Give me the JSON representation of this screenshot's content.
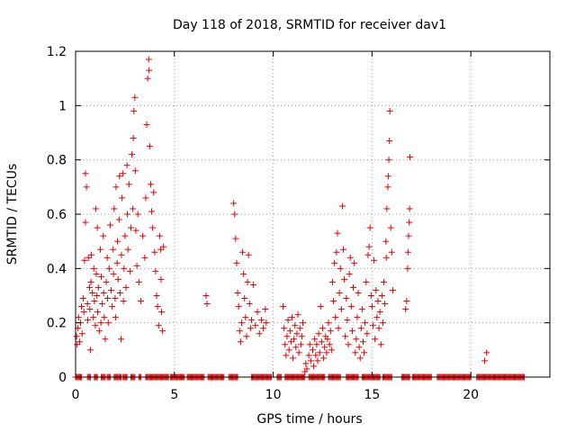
{
  "chart_data": {
    "type": "scatter",
    "title": "Day 118 of 2018, SRMTID for receiver dav1",
    "xlabel": "GPS time / hours",
    "ylabel": "SRMTID / TECUs",
    "xlim": [
      0,
      24
    ],
    "ylim": [
      0,
      1.2
    ],
    "xticks": [
      0,
      5,
      10,
      15,
      20
    ],
    "xtick_labels": [
      "0",
      "5",
      "10",
      "15",
      "20"
    ],
    "yticks": [
      0,
      0.2,
      0.4,
      0.6,
      0.8,
      1.0,
      1.2
    ],
    "ytick_labels": [
      "0",
      "0.2",
      "0.4",
      "0.6",
      "0.8",
      "1",
      "1.2"
    ],
    "grid": true,
    "marker": "+",
    "color": "#e00000",
    "series": [
      {
        "name": "SRMTID",
        "points": [
          [
            0.05,
            0.15
          ],
          [
            0.08,
            0.12
          ],
          [
            0.12,
            0.18
          ],
          [
            0.15,
            0.22
          ],
          [
            0.2,
            0.13
          ],
          [
            0.25,
            0.2
          ],
          [
            0.3,
            0.26
          ],
          [
            0.33,
            0.16
          ],
          [
            0.38,
            0.29
          ],
          [
            0.42,
            0.24
          ],
          [
            0.45,
            0.43
          ],
          [
            0.5,
            0.57
          ],
          [
            0.5,
            0.75
          ],
          [
            0.55,
            0.7
          ],
          [
            0.6,
            0.27
          ],
          [
            0.62,
            0.21
          ],
          [
            0.65,
            0.44
          ],
          [
            0.7,
            0.33
          ],
          [
            0.72,
            0.25
          ],
          [
            0.75,
            0.1
          ],
          [
            0.78,
            0.35
          ],
          [
            0.8,
            0.45
          ],
          [
            0.85,
            0.31
          ],
          [
            0.9,
            0.22
          ],
          [
            0.92,
            0.4
          ],
          [
            0.95,
            0.28
          ],
          [
            1.0,
            0.19
          ],
          [
            1.02,
            0.62
          ],
          [
            1.05,
            0.38
          ],
          [
            1.08,
            0.3
          ],
          [
            1.1,
            0.55
          ],
          [
            1.12,
            0.24
          ],
          [
            1.15,
            0.33
          ],
          [
            1.2,
            0.17
          ],
          [
            1.25,
            0.47
          ],
          [
            1.28,
            0.2
          ],
          [
            1.3,
            0.37
          ],
          [
            1.35,
            0.27
          ],
          [
            1.4,
            0.52
          ],
          [
            1.42,
            0.31
          ],
          [
            1.45,
            0.22
          ],
          [
            1.5,
            0.14
          ],
          [
            1.55,
            0.35
          ],
          [
            1.6,
            0.44
          ],
          [
            1.62,
            0.29
          ],
          [
            1.65,
            0.2
          ],
          [
            1.7,
            0.4
          ],
          [
            1.75,
            0.56
          ],
          [
            1.8,
            0.32
          ],
          [
            1.85,
            0.26
          ],
          [
            1.9,
            0.47
          ],
          [
            1.92,
            0.38
          ],
          [
            1.95,
            0.62
          ],
          [
            2.0,
            0.29
          ],
          [
            2.02,
            0.22
          ],
          [
            2.05,
            0.7
          ],
          [
            2.1,
            0.42
          ],
          [
            2.12,
            0.5
          ],
          [
            2.15,
            0.36
          ],
          [
            2.2,
            0.58
          ],
          [
            2.22,
            0.74
          ],
          [
            2.25,
            0.31
          ],
          [
            2.3,
            0.14
          ],
          [
            2.32,
            0.45
          ],
          [
            2.35,
            0.66
          ],
          [
            2.4,
            0.75
          ],
          [
            2.42,
            0.28
          ],
          [
            2.45,
            0.4
          ],
          [
            2.5,
            0.52
          ],
          [
            2.55,
            0.33
          ],
          [
            2.6,
            0.78
          ],
          [
            2.62,
            0.6
          ],
          [
            2.65,
            0.47
          ],
          [
            2.7,
            0.71
          ],
          [
            2.75,
            0.39
          ],
          [
            2.8,
            0.55
          ],
          [
            2.85,
            0.82
          ],
          [
            2.9,
            0.62
          ],
          [
            2.92,
            0.88
          ],
          [
            2.95,
            0.98
          ],
          [
            3.0,
            1.03
          ],
          [
            3.02,
            0.76
          ],
          [
            3.05,
            0.54
          ],
          [
            3.1,
            0.41
          ],
          [
            3.15,
            0.6
          ],
          [
            3.2,
            0.35
          ],
          [
            3.3,
            0.28
          ],
          [
            3.4,
            0.52
          ],
          [
            3.5,
            0.44
          ],
          [
            3.55,
            0.66
          ],
          [
            3.6,
            0.93
          ],
          [
            3.65,
            1.1
          ],
          [
            3.7,
            1.17
          ],
          [
            3.72,
            1.13
          ],
          [
            3.75,
            0.85
          ],
          [
            3.8,
            0.71
          ],
          [
            3.85,
            0.61
          ],
          [
            3.9,
            0.55
          ],
          [
            3.95,
            0.68
          ],
          [
            4.0,
            0.46
          ],
          [
            4.05,
            0.39
          ],
          [
            4.1,
            0.3
          ],
          [
            4.15,
            0.26
          ],
          [
            4.2,
            0.19
          ],
          [
            4.25,
            0.52
          ],
          [
            4.3,
            0.47
          ],
          [
            4.32,
            0.36
          ],
          [
            4.35,
            0.24
          ],
          [
            4.4,
            0.17
          ],
          [
            4.45,
            0.48
          ],
          [
            6.6,
            0.3
          ],
          [
            6.65,
            0.27
          ],
          [
            8.0,
            0.64
          ],
          [
            8.05,
            0.6
          ],
          [
            8.1,
            0.51
          ],
          [
            8.15,
            0.42
          ],
          [
            8.2,
            0.31
          ],
          [
            8.25,
            0.26
          ],
          [
            8.3,
            0.17
          ],
          [
            8.35,
            0.13
          ],
          [
            8.4,
            0.2
          ],
          [
            8.45,
            0.46
          ],
          [
            8.5,
            0.38
          ],
          [
            8.55,
            0.29
          ],
          [
            8.6,
            0.22
          ],
          [
            8.65,
            0.15
          ],
          [
            8.7,
            0.35
          ],
          [
            8.75,
            0.45
          ],
          [
            8.8,
            0.27
          ],
          [
            8.85,
            0.18
          ],
          [
            8.9,
            0.21
          ],
          [
            9.0,
            0.34
          ],
          [
            9.1,
            0.19
          ],
          [
            9.2,
            0.24
          ],
          [
            9.3,
            0.16
          ],
          [
            9.4,
            0.21
          ],
          [
            9.5,
            0.18
          ],
          [
            9.6,
            0.25
          ],
          [
            9.65,
            0.2
          ],
          [
            10.5,
            0.26
          ],
          [
            10.55,
            0.18
          ],
          [
            10.6,
            0.12
          ],
          [
            10.65,
            0.08
          ],
          [
            10.7,
            0.15
          ],
          [
            10.75,
            0.21
          ],
          [
            10.8,
            0.1
          ],
          [
            10.85,
            0.17
          ],
          [
            10.9,
            0.13
          ],
          [
            10.95,
            0.22
          ],
          [
            11.0,
            0.07
          ],
          [
            11.05,
            0.14
          ],
          [
            11.1,
            0.19
          ],
          [
            11.15,
            0.11
          ],
          [
            11.2,
            0.16
          ],
          [
            11.25,
            0.23
          ],
          [
            11.3,
            0.09
          ],
          [
            11.35,
            0.18
          ],
          [
            11.4,
            0.12
          ],
          [
            11.45,
            0.15
          ],
          [
            11.5,
            0.2
          ],
          [
            11.6,
            0.02
          ],
          [
            11.65,
            0.05
          ],
          [
            11.7,
            0.03
          ],
          [
            11.8,
            0.08
          ],
          [
            11.85,
            0.12
          ],
          [
            11.9,
            0.06
          ],
          [
            12.0,
            0.1
          ],
          [
            12.05,
            0.04
          ],
          [
            12.1,
            0.14
          ],
          [
            12.15,
            0.08
          ],
          [
            12.2,
            0.12
          ],
          [
            12.25,
            0.06
          ],
          [
            12.3,
            0.16
          ],
          [
            12.35,
            0.09
          ],
          [
            12.4,
            0.26
          ],
          [
            12.45,
            0.13
          ],
          [
            12.5,
            0.18
          ],
          [
            12.55,
            0.07
          ],
          [
            12.6,
            0.11
          ],
          [
            12.65,
            0.15
          ],
          [
            12.7,
            0.09
          ],
          [
            12.75,
            0.14
          ],
          [
            12.8,
            0.2
          ],
          [
            12.85,
            0.12
          ],
          [
            12.9,
            0.17
          ],
          [
            12.95,
            0.1
          ],
          [
            13.0,
            0.35
          ],
          [
            13.05,
            0.28
          ],
          [
            13.1,
            0.42
          ],
          [
            13.15,
            0.22
          ],
          [
            13.2,
            0.46
          ],
          [
            13.25,
            0.53
          ],
          [
            13.3,
            0.18
          ],
          [
            13.35,
            0.31
          ],
          [
            13.4,
            0.4
          ],
          [
            13.45,
            0.25
          ],
          [
            13.5,
            0.63
          ],
          [
            13.55,
            0.47
          ],
          [
            13.6,
            0.36
          ],
          [
            13.65,
            0.15
          ],
          [
            13.7,
            0.29
          ],
          [
            13.75,
            0.21
          ],
          [
            13.8,
            0.12
          ],
          [
            13.85,
            0.38
          ],
          [
            13.9,
            0.44
          ],
          [
            13.95,
            0.26
          ],
          [
            14.0,
            0.17
          ],
          [
            14.05,
            0.33
          ],
          [
            14.1,
            0.42
          ],
          [
            14.15,
            0.09
          ],
          [
            14.2,
            0.14
          ],
          [
            14.25,
            0.22
          ],
          [
            14.3,
            0.31
          ],
          [
            14.35,
            0.11
          ],
          [
            14.4,
            0.07
          ],
          [
            14.45,
            0.18
          ],
          [
            14.5,
            0.25
          ],
          [
            14.55,
            0.13
          ],
          [
            14.6,
            0.09
          ],
          [
            14.65,
            0.2
          ],
          [
            14.7,
            0.35
          ],
          [
            14.75,
            0.16
          ],
          [
            14.8,
            0.45
          ],
          [
            14.85,
            0.48
          ],
          [
            14.9,
            0.55
          ],
          [
            14.95,
            0.3
          ],
          [
            15.0,
            0.26
          ],
          [
            15.05,
            0.19
          ],
          [
            15.1,
            0.43
          ],
          [
            15.15,
            0.14
          ],
          [
            15.2,
            0.32
          ],
          [
            15.25,
            0.22
          ],
          [
            15.3,
            0.28
          ],
          [
            15.35,
            0.18
          ],
          [
            15.4,
            0.24
          ],
          [
            15.45,
            0.12
          ],
          [
            15.5,
            0.3
          ],
          [
            15.55,
            0.2
          ],
          [
            15.6,
            0.35
          ],
          [
            15.65,
            0.27
          ],
          [
            15.7,
            0.5
          ],
          [
            15.72,
            0.44
          ],
          [
            15.75,
            0.62
          ],
          [
            15.8,
            0.7
          ],
          [
            15.82,
            0.74
          ],
          [
            15.85,
            0.8
          ],
          [
            15.88,
            0.87
          ],
          [
            15.9,
            0.98
          ],
          [
            15.95,
            0.55
          ],
          [
            16.0,
            0.46
          ],
          [
            16.05,
            0.32
          ],
          [
            16.7,
            0.25
          ],
          [
            16.75,
            0.28
          ],
          [
            16.8,
            0.4
          ],
          [
            16.82,
            0.46
          ],
          [
            16.85,
            0.52
          ],
          [
            16.88,
            0.57
          ],
          [
            16.9,
            0.62
          ],
          [
            16.92,
            0.81
          ],
          [
            20.7,
            0.06
          ],
          [
            20.8,
            0.09
          ]
        ],
        "zero_segments": [
          [
            0.0,
            0.3
          ],
          [
            0.6,
            0.75
          ],
          [
            0.95,
            1.1
          ],
          [
            1.3,
            1.5
          ],
          [
            1.6,
            1.75
          ],
          [
            1.95,
            2.3
          ],
          [
            2.4,
            2.6
          ],
          [
            2.8,
            3.0
          ],
          [
            3.2,
            3.3
          ],
          [
            3.55,
            4.7
          ],
          [
            4.8,
            5.5
          ],
          [
            5.65,
            6.5
          ],
          [
            6.7,
            7.5
          ],
          [
            7.75,
            8.2
          ],
          [
            8.9,
            9.9
          ],
          [
            10.2,
            10.4
          ],
          [
            10.6,
            11.6
          ],
          [
            11.8,
            12.6
          ],
          [
            12.8,
            13.4
          ],
          [
            13.7,
            14.3
          ],
          [
            14.5,
            15.4
          ],
          [
            15.55,
            16.0
          ],
          [
            16.5,
            16.9
          ],
          [
            17.05,
            18.0
          ],
          [
            18.3,
            20.0
          ],
          [
            20.3,
            22.7
          ]
        ]
      }
    ]
  }
}
